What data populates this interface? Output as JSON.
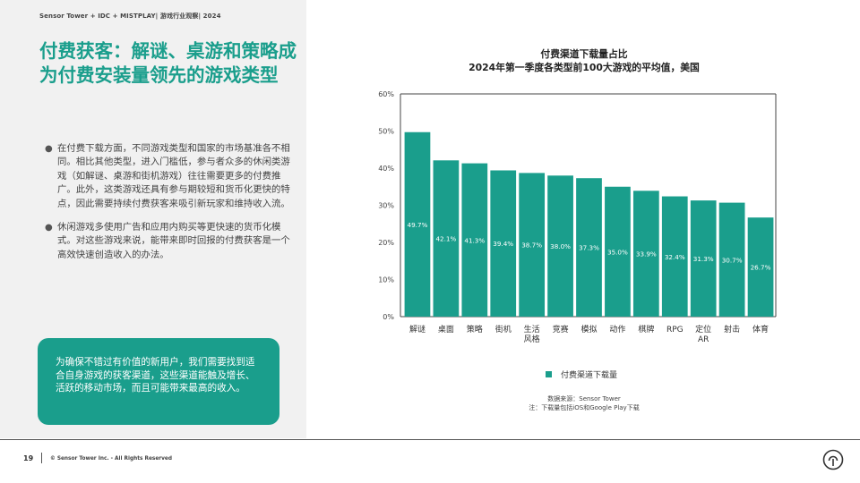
{
  "header": {
    "text": "Sensor Tower + IDC + MISTPLAY| 游戏行业观察| 2024"
  },
  "page_title": "付费获客：解谜、桌游和策略成为付费安装量领先的游戏类型",
  "bullets": [
    "在付费下载方面，不同游戏类型和国家的市场基准各不相同。相比其他类型，进入门槛低，参与者众多的休闲类游戏（如解谜、桌游和街机游戏）往往需要更多的付费推广。此外，这类游戏还具有参与期较短和货币化更快的特点，因此需要持续付费获客来吸引新玩家和维持收入流。",
    "休闲游戏多使用广告和应用内购买等更快速的货币化模式。对这些游戏来说，能带来即时回报的付费获客是一个高效快速创造收入的办法。"
  ],
  "callout": {
    "text": "为确保不错过有价值的新用户，我们需要找到适合自身游戏的获客渠道，这些渠道能触及增长、活跃的移动市场，而且可能带来最高的收入。"
  },
  "chart_data": {
    "type": "bar",
    "title": "付费渠道下载量占比",
    "subtitle": "2024年第一季度各类型前100大游戏的平均值，美国",
    "categories": [
      "解谜",
      "桌面",
      "策略",
      "街机",
      "生活风格",
      "竞赛",
      "模拟",
      "动作",
      "棋牌",
      "RPG",
      "定位AR",
      "射击",
      "体育"
    ],
    "category_lines": [
      [
        "解谜"
      ],
      [
        "桌面"
      ],
      [
        "策略"
      ],
      [
        "街机"
      ],
      [
        "生活",
        "风格"
      ],
      [
        "竞赛"
      ],
      [
        "模拟"
      ],
      [
        "动作"
      ],
      [
        "棋牌"
      ],
      [
        "RPG"
      ],
      [
        "定位",
        "AR"
      ],
      [
        "射击"
      ],
      [
        "体育"
      ]
    ],
    "series": [
      {
        "name": "付费渠道下载量",
        "values": [
          49.7,
          42.1,
          41.3,
          39.4,
          38.7,
          38.0,
          37.3,
          35.0,
          33.9,
          32.4,
          31.3,
          30.7,
          26.7
        ]
      }
    ],
    "value_labels": [
      "49.7%",
      "42.1%",
      "41.3%",
      "39.4%",
      "38.7%",
      "38.0%",
      "37.3%",
      "35.0%",
      "33.9%",
      "32.4%",
      "31.3%",
      "30.7%",
      "26.7%"
    ],
    "y_ticks": [
      0,
      10,
      20,
      30,
      40,
      50,
      60
    ],
    "y_tick_labels": [
      "0%",
      "10%",
      "20%",
      "30%",
      "40%",
      "50%",
      "60%"
    ],
    "ylim": [
      0,
      60
    ],
    "grid": false,
    "legend_position": "bottom",
    "bar_color": "#1a9e8c"
  },
  "footnote": {
    "source": "数据来源：Sensor Tower",
    "note": "注：下载量包括iOS和Google Play下载"
  },
  "footer": {
    "page_number": "19",
    "copyright": "© Sensor Tower Inc. - All Rights Reserved"
  },
  "icons": {
    "logo": "sensor-tower-logo-icon"
  },
  "colors": {
    "accent": "#1a9e8c",
    "panel": "#f1f1f1"
  }
}
